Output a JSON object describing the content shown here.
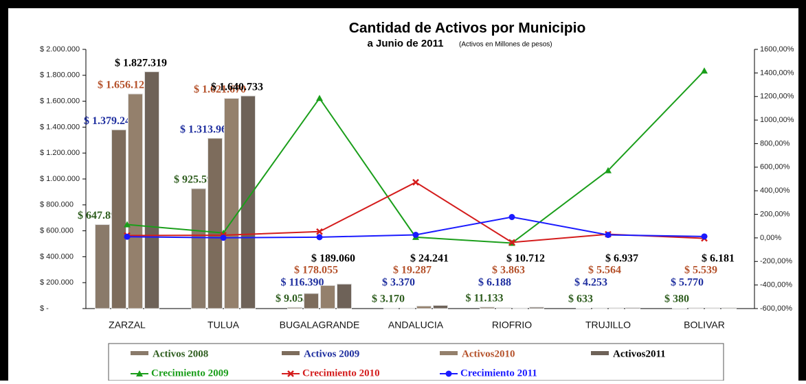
{
  "chart_data": {
    "type": "bar-line",
    "title": "Cantidad de Activos por Municipio",
    "subtitle": "a Junio de 2011",
    "subtitle_note": "(Activos en Millones de pesos)",
    "categories": [
      "ZARZAL",
      "TULUA",
      "BUGALAGRANDE",
      "ANDALUCIA",
      "RIOFRIO",
      "TRUJILLO",
      "BOLIVAR"
    ],
    "ylim": [
      0,
      2000000
    ],
    "yticks": [
      {
        "value": 0,
        "label": "$ -"
      },
      {
        "value": 200000,
        "label": "$ 200.000"
      },
      {
        "value": 400000,
        "label": "$ 400.000"
      },
      {
        "value": 600000,
        "label": "$ 600.000"
      },
      {
        "value": 800000,
        "label": "$ 800.000"
      },
      {
        "value": 1000000,
        "label": "$ 1.000.000"
      },
      {
        "value": 1200000,
        "label": "$ 1.200.000"
      },
      {
        "value": 1400000,
        "label": "$ 1.400.000"
      },
      {
        "value": 1600000,
        "label": "$ 1.600.000"
      },
      {
        "value": 1800000,
        "label": "$ 1.800.000"
      },
      {
        "value": 2000000,
        "label": "$ 2.000.000"
      }
    ],
    "y2lim": [
      -600,
      1600
    ],
    "y2ticks": [
      {
        "value": -600,
        "label": "-600,00%"
      },
      {
        "value": -400,
        "label": "-400,00%"
      },
      {
        "value": -200,
        "label": "-200,00%"
      },
      {
        "value": 0,
        "label": "0,00%"
      },
      {
        "value": 200,
        "label": "200,00%"
      },
      {
        "value": 400,
        "label": "400,00%"
      },
      {
        "value": 600,
        "label": "600,00%"
      },
      {
        "value": 800,
        "label": "800,00%"
      },
      {
        "value": 1000,
        "label": "1000,00%"
      },
      {
        "value": 1200,
        "label": "1200,00%"
      },
      {
        "value": 1400,
        "label": "1400,00%"
      },
      {
        "value": 1600,
        "label": "1600,00%"
      }
    ],
    "series": [
      {
        "name": "Activos 2008",
        "type": "bar",
        "color": "#8a7a6a",
        "label_color": "#2e5d1e",
        "values": [
          647890,
          925591,
          9055,
          3170,
          11133,
          633,
          380
        ],
        "value_labels": [
          "$ 647.890",
          "$ 925.591",
          "$ 9.055",
          "$ 3.170",
          "$ 11.133",
          "$ 633",
          "$ 380"
        ]
      },
      {
        "name": "Activos 2009",
        "type": "bar",
        "color": "#7d6c5c",
        "label_color": "#1f2f9f",
        "values": [
          1379243,
          1313963,
          116390,
          3370,
          6188,
          4253,
          5770
        ],
        "value_labels": [
          "$ 1.379.243",
          "$ 1.313.963",
          "$ 116.390",
          "$ 3.370",
          "$ 6.188",
          "$ 4.253",
          "$ 5.770"
        ]
      },
      {
        "name": "Activos2010",
        "type": "bar",
        "color": "#94806c",
        "label_color": "#b5522b",
        "values": [
          1656123,
          1621670,
          178055,
          19287,
          3863,
          5564,
          5539
        ],
        "value_labels": [
          "$ 1.656.123",
          "$ 1.621.670",
          "$ 178.055",
          "$ 19.287",
          "$ 3.863",
          "$ 5.564",
          "$ 5.539"
        ]
      },
      {
        "name": "Activos2011",
        "type": "bar",
        "color": "#6e6258",
        "label_color": "#000000",
        "values": [
          1827319,
          1640733,
          189060,
          24241,
          10712,
          6937,
          6181
        ],
        "value_labels": [
          "$ 1.827.319",
          "$ 1.640.733",
          "$ 189.060",
          "$ 24.241",
          "$ 10.712",
          "$ 6.937",
          "$ 6.181"
        ]
      },
      {
        "name": "Crecimiento 2009",
        "type": "line",
        "axis": "y2",
        "color": "#1a9e1a",
        "marker": "triangle",
        "values": [
          113,
          42,
          1185,
          6,
          -44,
          572,
          1418
        ]
      },
      {
        "name": "Crecimiento 2010",
        "type": "line",
        "axis": "y2",
        "color": "#d41c1c",
        "marker": "cross",
        "values": [
          20,
          23,
          53,
          472,
          -38,
          31,
          -4
        ]
      },
      {
        "name": "Crecimiento 2011",
        "type": "line",
        "axis": "y2",
        "color": "#1a1aff",
        "marker": "circle",
        "values": [
          10,
          1,
          6,
          26,
          177,
          25,
          12
        ]
      }
    ]
  }
}
